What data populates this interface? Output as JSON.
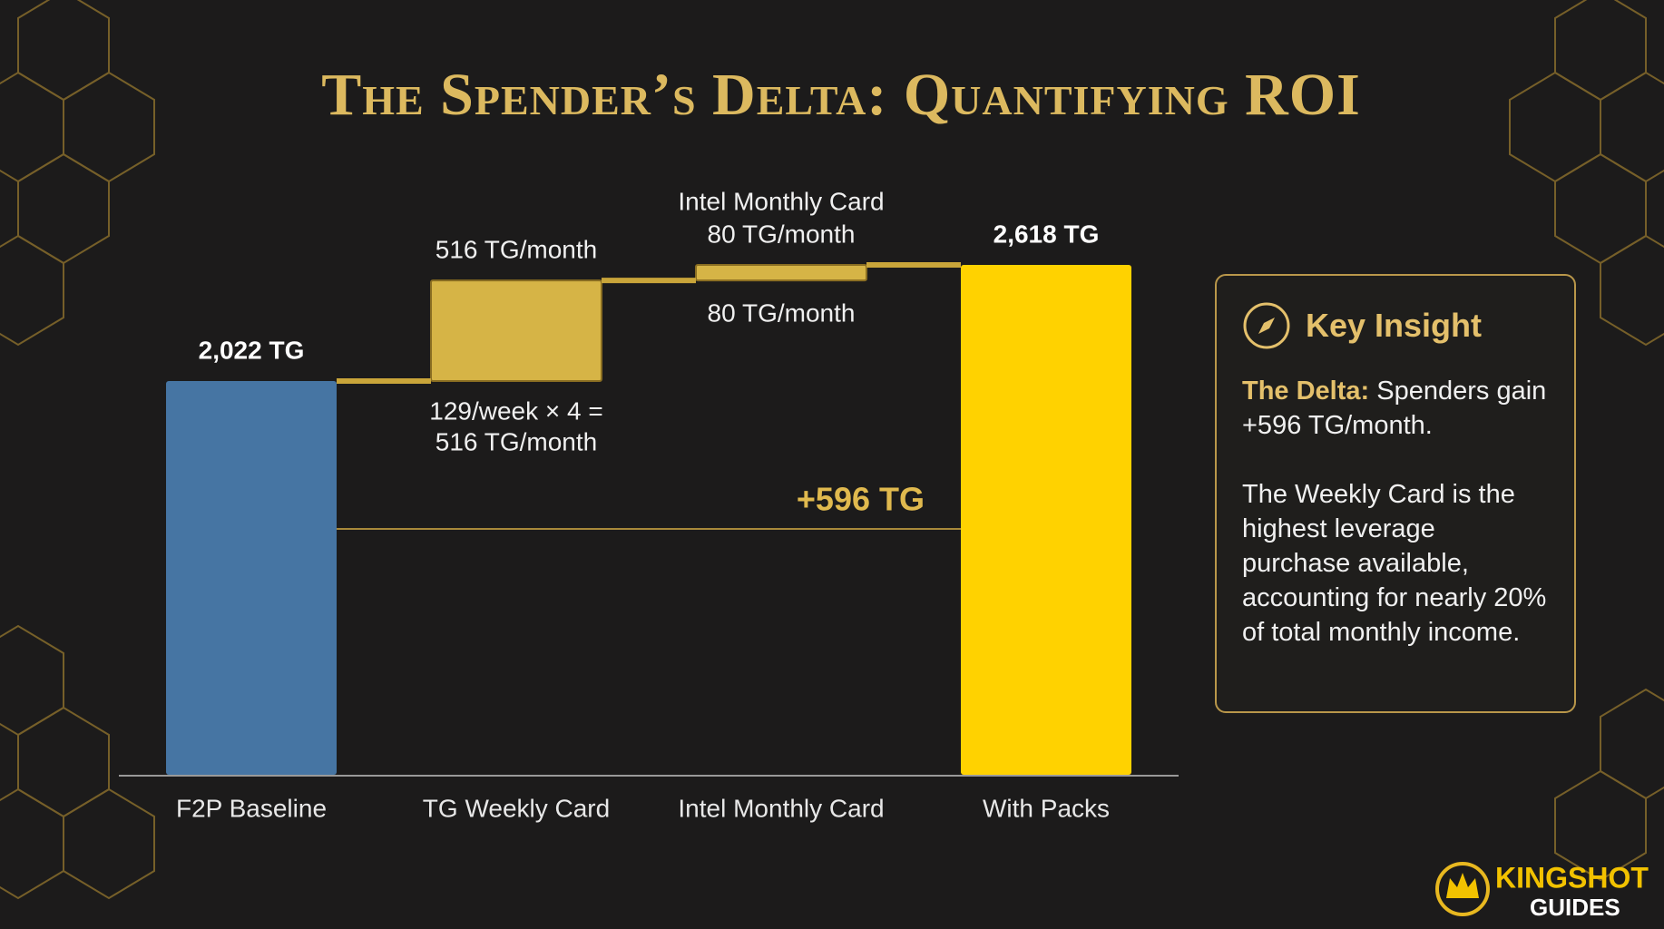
{
  "chart_data": {
    "type": "waterfall",
    "title": "The Spender’s Delta: Quantifying ROI",
    "categories": [
      "F2P Baseline",
      "TG Weekly Card",
      "Intel Monthly Card",
      "With Packs"
    ],
    "values": [
      2022,
      516,
      80,
      2618
    ],
    "value_labels": [
      "2,022 TG",
      "516 TG/month",
      "80 TG/month",
      "2,618 TG"
    ],
    "colors": [
      "#4675a3",
      "#d6b446",
      "#d6b446",
      "#ffd200"
    ],
    "annotations": {
      "weekly_note": [
        "129/week × 4 =",
        "516 TG/month"
      ],
      "monthly_heading": "Intel Monthly Card",
      "monthly_note": "80 TG/month"
    },
    "delta": {
      "value": 596,
      "label": "+596 TG"
    }
  },
  "insight": {
    "title": "Key Insight",
    "lead": "The Delta:",
    "lead_text": "Spenders gain +596 TG/month.",
    "body": "The Weekly Card is the highest leverage purchase available, accounting for nearly 20% of total monthly income."
  },
  "logo": {
    "top": "KINGSHOT",
    "bottom": "GUIDES"
  }
}
